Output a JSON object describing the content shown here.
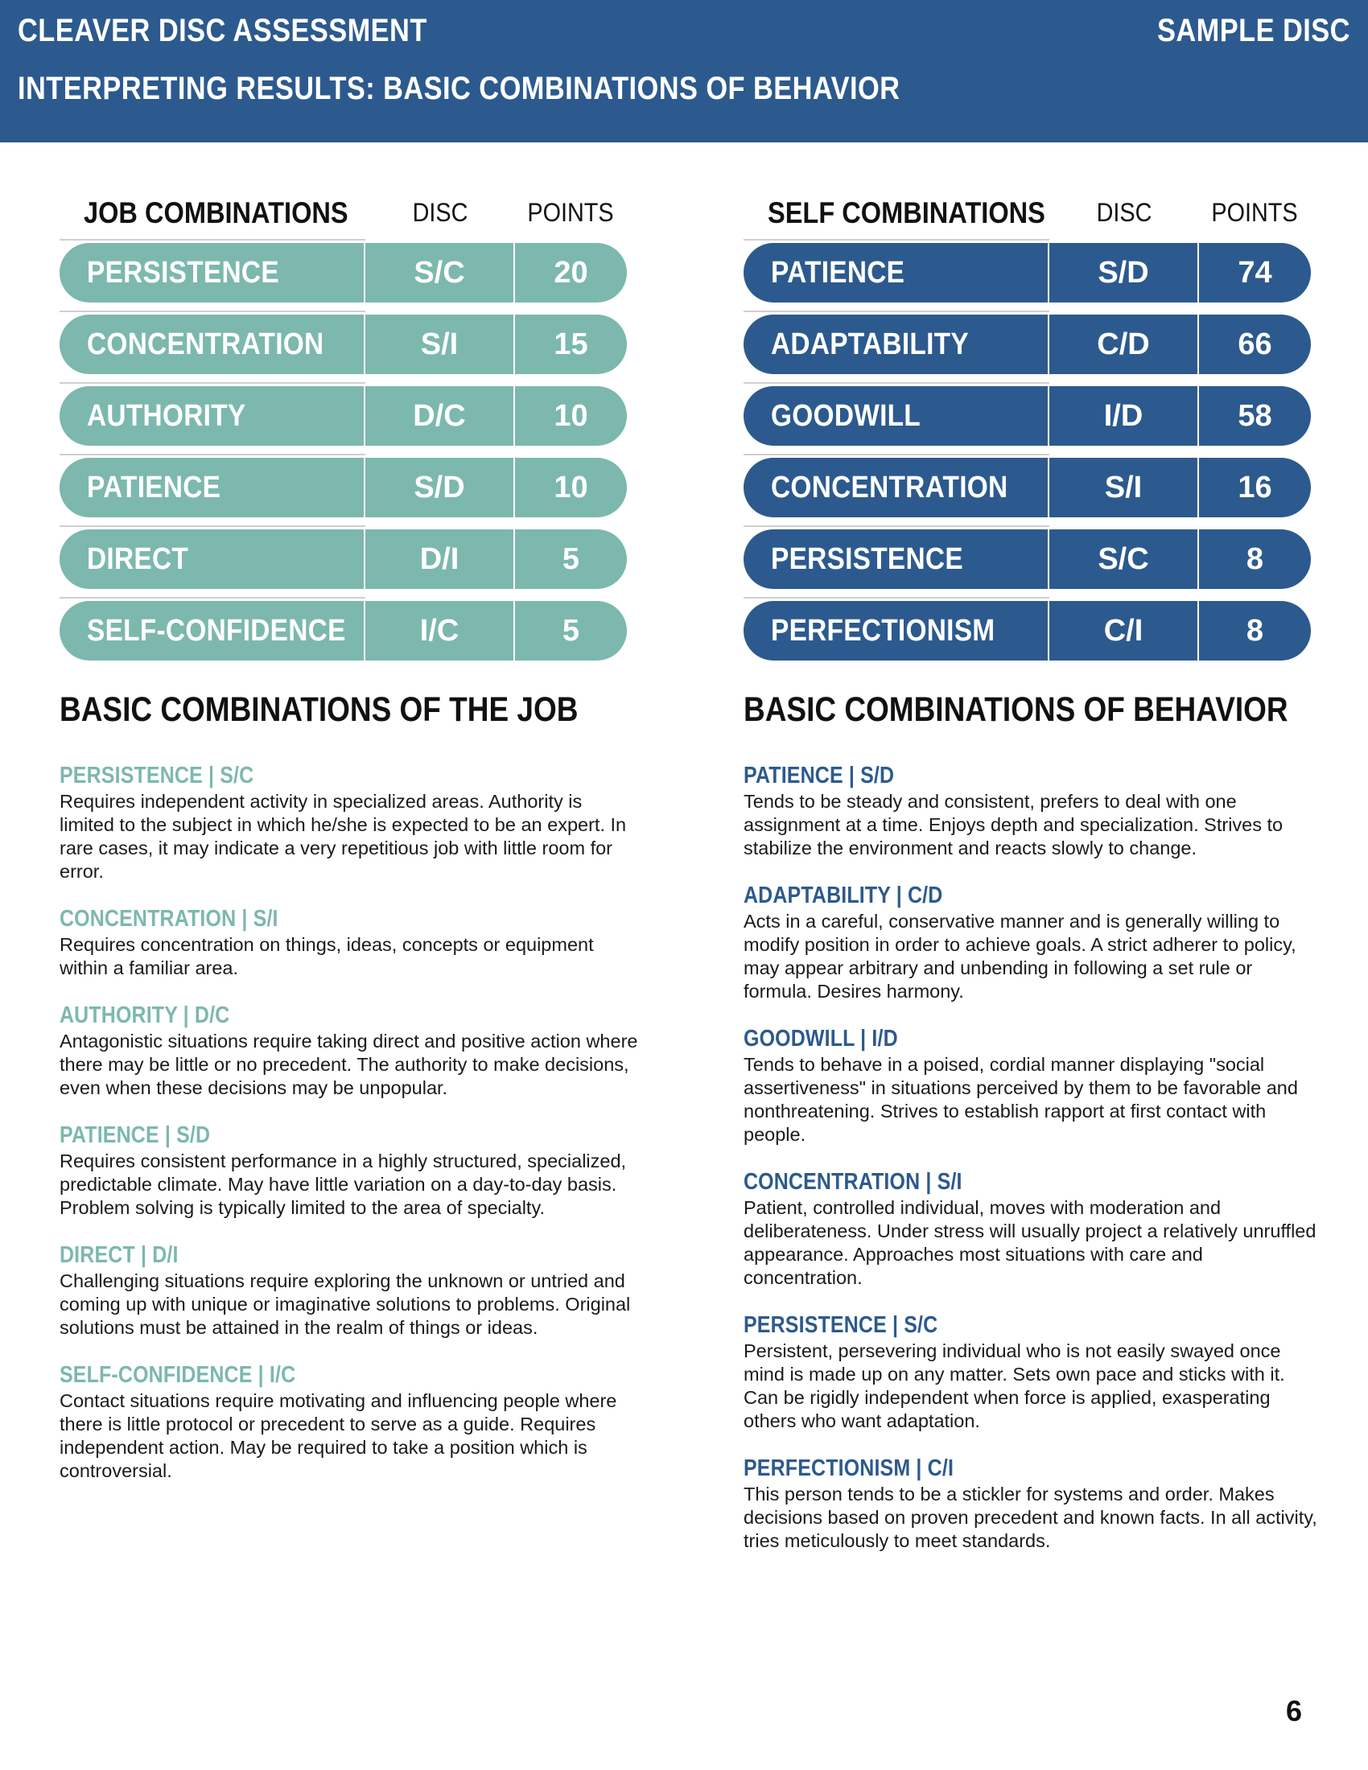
{
  "header": {
    "title": "CLEAVER DISC ASSESSMENT",
    "subtitle": "INTERPRETING RESULTS: BASIC COMBINATIONS OF BEHAVIOR",
    "right_label": "SAMPLE DISC"
  },
  "colors": {
    "header_blue": "#2c5a8e",
    "job_teal": "#7cb8ae",
    "self_blue": "#2c5a8e"
  },
  "job_table": {
    "title": "JOB COMBINATIONS",
    "disc_label": "DISC",
    "points_label": "POINTS",
    "rows": [
      {
        "name": "PERSISTENCE",
        "disc": "S/C",
        "points": "20"
      },
      {
        "name": "CONCENTRATION",
        "disc": "S/I",
        "points": "15"
      },
      {
        "name": "AUTHORITY",
        "disc": "D/C",
        "points": "10"
      },
      {
        "name": "PATIENCE",
        "disc": "S/D",
        "points": "10"
      },
      {
        "name": "DIRECT",
        "disc": "D/I",
        "points": "5"
      },
      {
        "name": "SELF-CONFIDENCE",
        "disc": "I/C",
        "points": "5"
      }
    ]
  },
  "self_table": {
    "title": "SELF COMBINATIONS",
    "disc_label": "DISC",
    "points_label": "POINTS",
    "rows": [
      {
        "name": "PATIENCE",
        "disc": "S/D",
        "points": "74"
      },
      {
        "name": "ADAPTABILITY",
        "disc": "C/D",
        "points": "66"
      },
      {
        "name": "GOODWILL",
        "disc": "I/D",
        "points": "58"
      },
      {
        "name": "CONCENTRATION",
        "disc": "S/I",
        "points": "16"
      },
      {
        "name": "PERSISTENCE",
        "disc": "S/C",
        "points": "8"
      },
      {
        "name": "PERFECTIONISM",
        "disc": "C/I",
        "points": "8"
      }
    ]
  },
  "job_section": {
    "title": "BASIC COMBINATIONS OF THE JOB",
    "items": [
      {
        "heading": "PERSISTENCE | S/C",
        "body": "Requires independent activity in specialized areas. Authority is limited to the subject in which he/she is expected to be an expert. In rare cases, it may indicate a very repetitious job with little room for error."
      },
      {
        "heading": "CONCENTRATION | S/I",
        "body": "Requires concentration on things, ideas, concepts or equipment within a familiar area."
      },
      {
        "heading": "AUTHORITY | D/C",
        "body": "Antagonistic situations require taking direct and positive action where there may be little or no precedent. The authority to make decisions, even when these decisions may be unpopular."
      },
      {
        "heading": "PATIENCE | S/D",
        "body": "Requires consistent performance in a highly structured, specialized, predictable climate. May have little variation on a day-to-day basis. Problem solving is typically limited to the area of specialty."
      },
      {
        "heading": "DIRECT | D/I",
        "body": "Challenging situations require exploring the unknown or untried and coming up with unique or imaginative solutions to problems. Original solutions must be attained in the realm of things or ideas."
      },
      {
        "heading": "SELF-CONFIDENCE | I/C",
        "body": "Contact situations require motivating and influencing people where there is little protocol or precedent to serve as a guide. Requires independent action. May be required to take a position which is controversial."
      }
    ]
  },
  "behavior_section": {
    "title": "BASIC COMBINATIONS OF BEHAVIOR",
    "items": [
      {
        "heading": "PATIENCE | S/D",
        "body": "Tends to be steady and consistent, prefers to deal with one assignment at a time. Enjoys depth and specialization. Strives to stabilize the environment and reacts slowly to change."
      },
      {
        "heading": "ADAPTABILITY | C/D",
        "body": "Acts in a careful, conservative manner and is generally willing to modify position in order to achieve goals. A strict adherer to policy, may appear arbitrary and unbending in following a set rule or formula. Desires harmony."
      },
      {
        "heading": "GOODWILL | I/D",
        "body": "Tends to behave in a poised, cordial manner displaying \"social assertiveness\" in situations perceived by them to be favorable and nonthreatening. Strives to establish rapport at first contact with people."
      },
      {
        "heading": "CONCENTRATION | S/I",
        "body": "Patient, controlled individual, moves with moderation and deliberateness. Under stress will usually project a relatively unruffled appearance. Approaches most situations with care and concentration."
      },
      {
        "heading": "PERSISTENCE | S/C",
        "body": "Persistent, persevering individual who is not easily swayed once mind is made up on any matter.  Sets own pace and sticks with it. Can be rigidly independent when force is applied, exasperating others who want adaptation."
      },
      {
        "heading": "PERFECTIONISM | C/I",
        "body": "This person tends to be a stickler for systems and order. Makes decisions based on proven precedent and known facts. In all activity, tries meticulously to meet standards."
      }
    ]
  },
  "page_number": "6"
}
